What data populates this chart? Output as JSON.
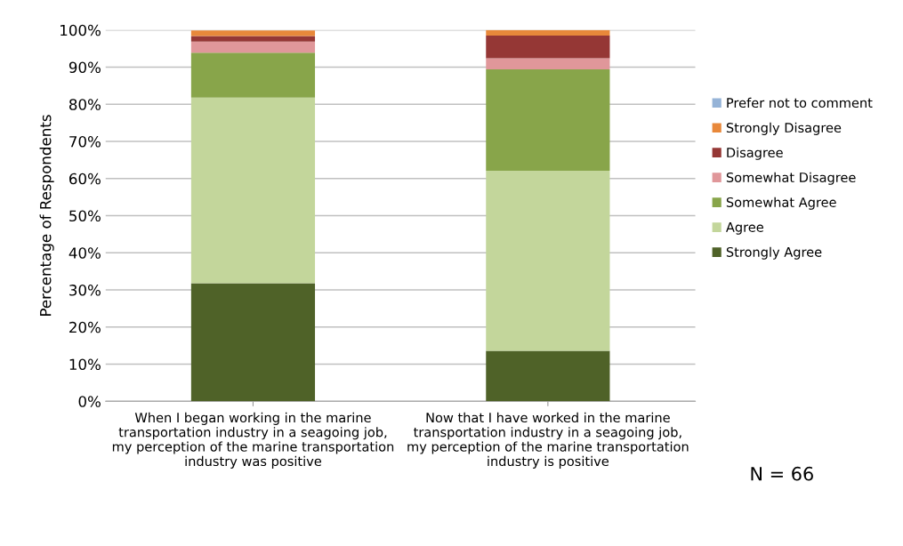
{
  "chart_data": {
    "type": "bar",
    "stacked": true,
    "ylabel": "Percentage of Respondents",
    "categories": [
      "When I began working in the marine transportation industry in a seagoing job, my perception of the marine transportation industry was positive",
      "Now that I have worked in the marine transportation industry in a seagoing job, my perception of the marine transportation industry is positive"
    ],
    "series": [
      {
        "name": "Strongly Agree",
        "color": "#4f6228",
        "values": [
          31.8,
          13.6
        ]
      },
      {
        "name": "Agree",
        "color": "#c3d69b",
        "values": [
          50.0,
          48.5
        ]
      },
      {
        "name": "Somewhat Agree",
        "color": "#88a54a",
        "values": [
          12.1,
          27.3
        ]
      },
      {
        "name": "Somewhat Disagree",
        "color": "#e0979a",
        "values": [
          3.0,
          3.0
        ]
      },
      {
        "name": "Disagree",
        "color": "#953735",
        "values": [
          1.5,
          6.1
        ]
      },
      {
        "name": "Strongly Disagree",
        "color": "#e8883a",
        "values": [
          1.5,
          1.5
        ]
      },
      {
        "name": "Prefer not to comment",
        "color": "#95b3d7",
        "values": [
          0,
          0
        ]
      }
    ],
    "ylim": [
      0,
      100
    ],
    "yticks": [
      {
        "value": 0,
        "label": "0%"
      },
      {
        "value": 10,
        "label": "10%"
      },
      {
        "value": 20,
        "label": "20%"
      },
      {
        "value": 30,
        "label": "30%"
      },
      {
        "value": 40,
        "label": "40%"
      },
      {
        "value": 50,
        "label": "50%"
      },
      {
        "value": 60,
        "label": "60%"
      },
      {
        "value": 70,
        "label": "70%"
      },
      {
        "value": 80,
        "label": "80%"
      },
      {
        "value": 90,
        "label": "90%"
      },
      {
        "value": 100,
        "label": "100%"
      }
    ],
    "grid": "y",
    "legend": "right",
    "annotations": [
      "N = 66"
    ]
  }
}
